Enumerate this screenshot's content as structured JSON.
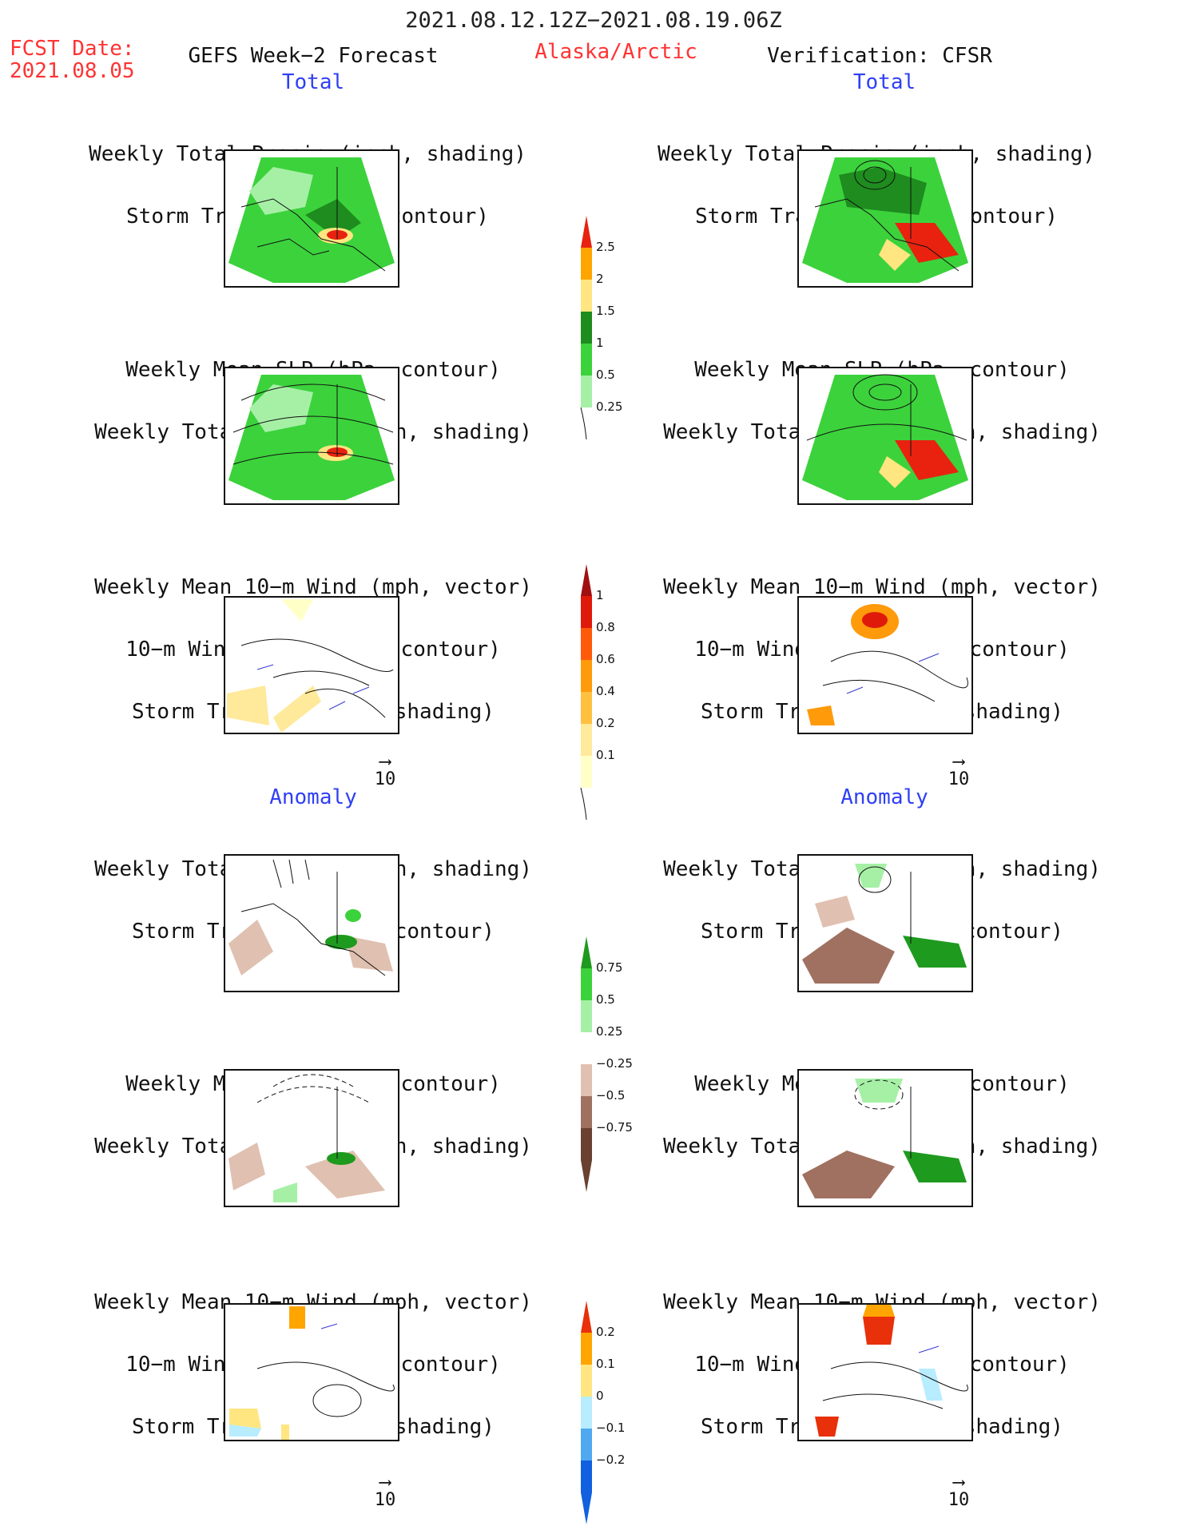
{
  "header": {
    "date_range": "2021.08.12.12Z−2021.08.19.06Z",
    "fcst_label": "FCST Date:",
    "fcst_date": "2021.08.05",
    "model": "GEFS Week−2 Forecast",
    "region": "Alaska/Arctic",
    "verification": "Verification: CFSR"
  },
  "sections": {
    "total": "Total",
    "anomaly": "Anomaly"
  },
  "panel_titles": {
    "precip_storm": [
      "Weekly Total Precip (inch, shading)",
      "Storm Track Density (contour)"
    ],
    "slp_precip": [
      "Weekly Mean SLP (hPa, contour)",
      "Weekly Total Precip (inch, shading)"
    ],
    "wind_storm": [
      "Weekly Mean 10−m Wind (mph, vector)",
      "10−m Wind Speed (mph, contour)",
      "Storm Track Density (shading)"
    ]
  },
  "vector_ref": "10",
  "colorbars": {
    "precip_total": {
      "labels": [
        "2.5",
        "2",
        "1.5",
        "1",
        "0.5",
        "0.25"
      ],
      "colors": [
        "#e8220f",
        "#ffa500",
        "#ffe680",
        "#1e8c1e",
        "#3cd23c",
        "#a6f0a6"
      ]
    },
    "storm_total": {
      "labels": [
        "1",
        "0.8",
        "0.6",
        "0.4",
        "0.2",
        "0.1"
      ],
      "colors": [
        "#a01010",
        "#e01a0a",
        "#ff5a0a",
        "#ff9a0a",
        "#ffc040",
        "#ffe99a",
        "#ffffc8"
      ]
    },
    "precip_anom": {
      "labels": [
        "0.75",
        "0.5",
        "0.25",
        "−0.25",
        "−0.5",
        "−0.75"
      ],
      "colors": [
        "#1e9a1e",
        "#3cd23c",
        "#a6f0a6",
        "#ffffff",
        "#e0c0b0",
        "#a07060",
        "#6a4030"
      ]
    },
    "storm_anom": {
      "labels": [
        "0.2",
        "0.1",
        "0",
        "−0.1",
        "−0.2"
      ],
      "colors": [
        "#e8300a",
        "#ffa500",
        "#ffe680",
        "#b8ecff",
        "#50a8f0",
        "#1060e0"
      ]
    }
  }
}
